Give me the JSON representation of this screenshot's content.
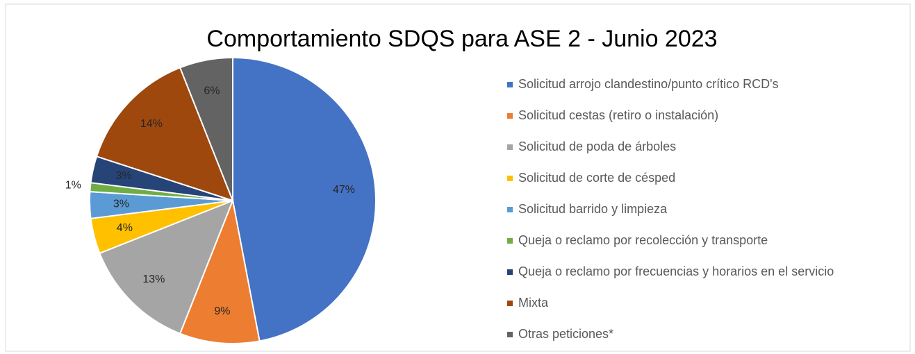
{
  "chart_data": {
    "type": "pie",
    "title": "Comportamiento SDQS para ASE 2 - Junio 2023",
    "categories": [
      "Solicitud arrojo clandestino/punto crítico RCD's",
      "Solicitud cestas (retiro o instalación)",
      "Solicitud de poda de árboles",
      "Solicitud de corte de césped",
      "Solicitud barrido y limpieza",
      "Queja o reclamo por recolección y transporte",
      "Queja o reclamo por frecuencias y horarios en el servicio",
      "Mixta",
      "Otras peticiones*"
    ],
    "values": [
      47,
      9,
      13,
      4,
      3,
      1,
      3,
      14,
      6
    ],
    "value_labels": [
      "47%",
      "9%",
      "13%",
      "4%",
      "3%",
      "1%",
      "3%",
      "14%",
      "6%"
    ],
    "colors": [
      "#4472c4",
      "#ed7d31",
      "#a5a5a5",
      "#ffc000",
      "#5b9bd5",
      "#70ad47",
      "#264478",
      "#9e480e",
      "#636363"
    ],
    "legend": "right"
  }
}
